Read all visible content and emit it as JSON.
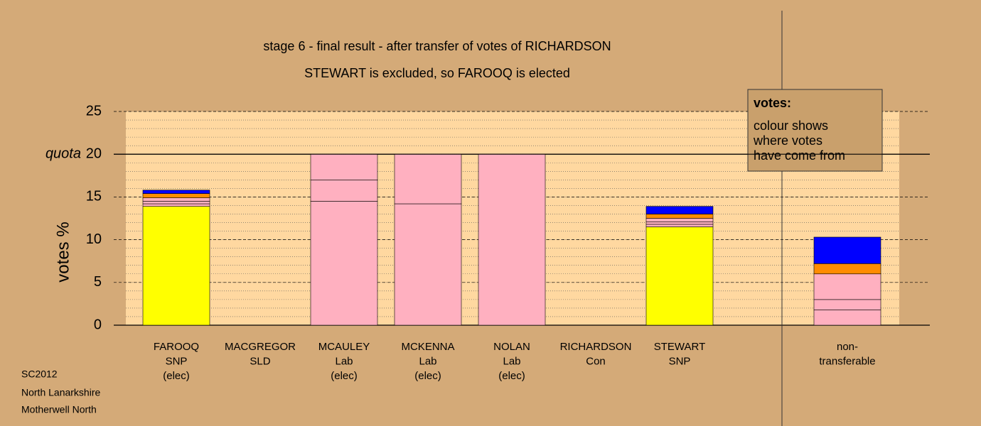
{
  "chart_data": {
    "type": "stacked_bar",
    "title": "stage 6 - final result - after transfer of votes of RICHARDSON",
    "subtitle": "STEWART is excluded, so FAROOQ is elected",
    "y_label": "votes %",
    "quota_label": "quota",
    "quota": 20,
    "categories": [
      [
        "FAROOQ",
        "SNP",
        "(elec)"
      ],
      [
        "MACGREGOR",
        "SLD"
      ],
      [
        "MCAULEY",
        "Lab",
        "(elec)"
      ],
      [
        "MCKENNA",
        "Lab",
        "(elec)"
      ],
      [
        "NOLAN",
        "Lab",
        "(elec)"
      ],
      [
        "RICHARDSON",
        "Con"
      ],
      [
        "STEWART",
        "SNP"
      ],
      null,
      [
        "non-",
        "transferable"
      ]
    ],
    "series": [
      {
        "color": "#ffff00",
        "values": [
          13.9,
          0,
          0,
          0,
          0,
          0,
          11.5,
          null,
          0
        ]
      },
      {
        "color": "#ffb0c0",
        "values": [
          0.3,
          0,
          14.5,
          14.2,
          20,
          0,
          0.3,
          null,
          1.8
        ]
      },
      {
        "color": "#ffb0c0",
        "values": [
          0.3,
          0,
          2.5,
          5.8,
          0,
          0,
          0.3,
          null,
          1.2
        ]
      },
      {
        "color": "#ffb0c0",
        "values": [
          0.4,
          0,
          3.0,
          0,
          0,
          0,
          0.4,
          null,
          3.0
        ]
      },
      {
        "color": "#ff8c00",
        "values": [
          0.5,
          0,
          0,
          0,
          0,
          0,
          0.5,
          null,
          1.2
        ]
      },
      {
        "color": "#0000ff",
        "values": [
          0.4,
          0,
          0,
          0,
          0,
          0,
          0.9,
          null,
          3.1
        ]
      }
    ],
    "ylim": [
      0,
      25
    ],
    "yticks": [
      0,
      5,
      10,
      15,
      20,
      25
    ],
    "minor_grid_step": 1,
    "legend_title": "votes:",
    "legend_text": [
      "colour shows",
      "where votes",
      "have come from"
    ],
    "footer": [
      "SC2012",
      "North Lanarkshire",
      "Motherwell North"
    ]
  }
}
